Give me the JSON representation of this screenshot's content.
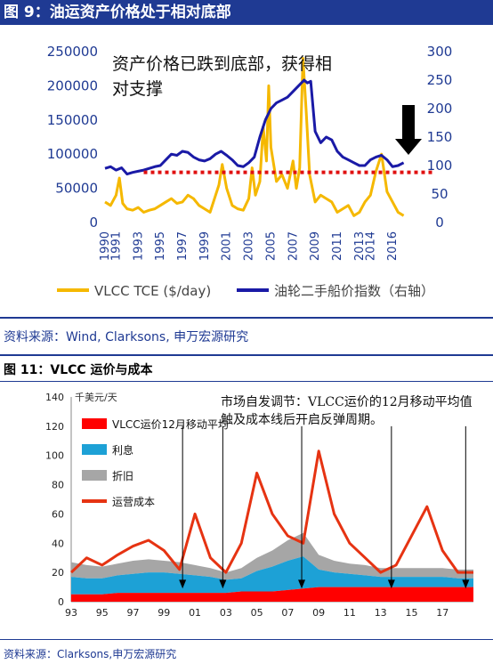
{
  "figure1": {
    "title": "图 9：油运资产价格处于相对底部",
    "source": "资料来源：Wind, Clarksons, 申万宏源研究",
    "annotation_line1": "资产价格已跌到底部，获得相",
    "annotation_line2": "对支撑"
  },
  "figure2": {
    "title": "图 11：VLCC 运价与成本",
    "source": "资料来源：Clarksons,申万宏源研究",
    "annotation_line1": "市场自发调节：VLCC运价的12月移动平均值",
    "annotation_line2": "触及成本线后开启反弹周期。",
    "unit_label": "千美元/天"
  },
  "colors": {
    "header_blue": "#1f3a93",
    "vlcc_tce": "#f5b800",
    "price_index": "#1a1aa6",
    "support_line": "#e01010",
    "ma_line": "#e63312",
    "interest": "#1da1d6",
    "depreciation": "#a6a6a6",
    "opex": "#ff0000"
  },
  "chart_data": [
    {
      "type": "line",
      "title": "油运资产价格处于相对底部",
      "x_ticks": [
        "1990",
        "1991",
        "1993",
        "1995",
        "1997",
        "1999",
        "2001",
        "2003",
        "2005",
        "2007",
        "2009",
        "2011",
        "2013",
        "2014",
        "2016"
      ],
      "x_range": [
        1990,
        2018
      ],
      "ylim_left": [
        0,
        250000
      ],
      "yticks_left": [
        "0",
        "50000",
        "100000",
        "150000",
        "200000",
        "250000"
      ],
      "ylim_right": [
        0,
        300
      ],
      "yticks_right": [
        "0",
        "50",
        "100",
        "150",
        "200",
        "250",
        "300"
      ],
      "support_level_right": 88,
      "series": [
        {
          "name": "VLCC TCE ($/day)",
          "axis": "left",
          "x": [
            1990,
            1990.5,
            1991,
            1991.3,
            1991.6,
            1992,
            1992.5,
            1993,
            1993.5,
            1994,
            1994.5,
            1995,
            1995.5,
            1996,
            1996.5,
            1997,
            1997.5,
            1998,
            1998.5,
            1999,
            1999.5,
            2000,
            2000.3,
            2000.6,
            2001,
            2001.5,
            2002,
            2002.5,
            2003,
            2003.3,
            2003.6,
            2004,
            2004.3,
            2004.6,
            2004.8,
            2005,
            2005.5,
            2006,
            2006.5,
            2007,
            2007.3,
            2007.6,
            2007.9,
            2008.2,
            2008.5,
            2009,
            2009.5,
            2010,
            2010.5,
            2011,
            2011.5,
            2012,
            2012.5,
            2013,
            2013.5,
            2014,
            2014.5,
            2015,
            2015.5,
            2016,
            2016.5,
            2017
          ],
          "y": [
            30000,
            25000,
            40000,
            65000,
            28000,
            20000,
            18000,
            22000,
            15000,
            18000,
            20000,
            25000,
            30000,
            35000,
            28000,
            30000,
            40000,
            35000,
            25000,
            20000,
            15000,
            40000,
            55000,
            85000,
            50000,
            25000,
            20000,
            18000,
            35000,
            80000,
            40000,
            60000,
            140000,
            90000,
            200000,
            110000,
            60000,
            70000,
            50000,
            90000,
            50000,
            80000,
            240000,
            160000,
            70000,
            30000,
            40000,
            35000,
            30000,
            15000,
            20000,
            25000,
            10000,
            15000,
            30000,
            40000,
            75000,
            100000,
            45000,
            30000,
            15000,
            10000
          ]
        },
        {
          "name": "油轮二手船价指数（右轴）",
          "axis": "right",
          "x": [
            1990,
            1990.5,
            1991,
            1991.5,
            1992,
            1992.5,
            1993,
            1993.5,
            1994,
            1994.5,
            1995,
            1995.5,
            1996,
            1996.5,
            1997,
            1997.5,
            1998,
            1998.5,
            1999,
            1999.5,
            2000,
            2000.5,
            2001,
            2001.5,
            2002,
            2002.5,
            2003,
            2003.5,
            2004,
            2004.5,
            2005,
            2005.5,
            2006,
            2006.5,
            2007,
            2007.5,
            2008,
            2008.3,
            2008.6,
            2009,
            2009.5,
            2010,
            2010.5,
            2011,
            2011.5,
            2012,
            2012.5,
            2013,
            2013.5,
            2014,
            2014.5,
            2015,
            2015.5,
            2016,
            2016.5,
            2017
          ],
          "y": [
            95,
            98,
            92,
            96,
            85,
            88,
            90,
            92,
            95,
            98,
            100,
            110,
            120,
            118,
            125,
            123,
            115,
            110,
            108,
            112,
            120,
            125,
            118,
            110,
            100,
            98,
            105,
            115,
            150,
            180,
            200,
            210,
            215,
            220,
            230,
            240,
            250,
            245,
            248,
            160,
            140,
            150,
            145,
            125,
            115,
            110,
            105,
            100,
            100,
            110,
            115,
            118,
            110,
            98,
            100,
            105
          ]
        }
      ]
    },
    {
      "type": "area",
      "title": "VLCC运价与成本",
      "ylabel": "千美元/天",
      "ylim": [
        0,
        140
      ],
      "yticks": [
        "0",
        "20",
        "40",
        "60",
        "80",
        "100",
        "120",
        "140"
      ],
      "x_ticks": [
        "93",
        "95",
        "97",
        "99",
        "01",
        "03",
        "05",
        "07",
        "09",
        "11",
        "13",
        "15",
        "17"
      ],
      "x_range": [
        1993,
        2019
      ],
      "legend_placement": "top-left",
      "x": [
        1993,
        1994,
        1995,
        1996,
        1997,
        1998,
        1999,
        2000,
        2001,
        2002,
        2003,
        2004,
        2005,
        2006,
        2007,
        2008,
        2009,
        2010,
        2011,
        2012,
        2013,
        2014,
        2015,
        2016,
        2017,
        2018,
        2019
      ],
      "series": [
        {
          "name": "运营成本",
          "values": [
            5,
            5,
            5,
            6,
            6,
            6,
            6,
            6,
            6,
            6,
            6,
            7,
            7,
            7,
            8,
            9,
            10,
            10,
            10,
            10,
            10,
            10,
            10,
            10,
            10,
            10,
            10
          ]
        },
        {
          "name": "利息",
          "values": [
            12,
            11,
            11,
            12,
            13,
            14,
            14,
            13,
            12,
            11,
            9,
            9,
            14,
            17,
            20,
            22,
            12,
            10,
            9,
            8,
            7,
            7,
            7,
            7,
            7,
            6,
            6
          ]
        },
        {
          "name": "折旧",
          "values": [
            10,
            9,
            8,
            8,
            9,
            9,
            8,
            8,
            7,
            6,
            5,
            7,
            9,
            11,
            14,
            16,
            10,
            8,
            7,
            7,
            6,
            6,
            6,
            6,
            6,
            6,
            6
          ]
        },
        {
          "name": "VLCC运价12月移动平均",
          "values": [
            20,
            30,
            25,
            32,
            38,
            42,
            35,
            22,
            60,
            30,
            20,
            40,
            88,
            60,
            45,
            40,
            103,
            60,
            40,
            30,
            20,
            25,
            45,
            65,
            35,
            20,
            20
          ]
        }
      ],
      "cost_floor_arrows_at": [
        2000.2,
        2002.8,
        2007.9,
        2013.7,
        2018.5
      ]
    }
  ]
}
